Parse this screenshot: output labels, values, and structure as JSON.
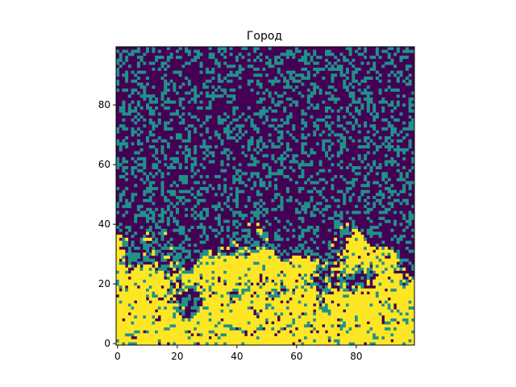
{
  "chart_data": {
    "type": "heatmap",
    "title": "Город",
    "xlabel": "",
    "ylabel": "",
    "grid_size": [
      100,
      100
    ],
    "origin": "lower",
    "xlim": [
      -0.5,
      99.5
    ],
    "ylim": [
      -0.5,
      99.5
    ],
    "x_ticks": [
      0,
      20,
      40,
      60,
      80
    ],
    "y_ticks": [
      0,
      20,
      40,
      60,
      80
    ],
    "x_tick_labels": [
      "0",
      "20",
      "40",
      "60",
      "80"
    ],
    "y_tick_labels": [
      "0",
      "20",
      "40",
      "60",
      "80"
    ],
    "grid": false,
    "legend": "none",
    "colormap": "viridis",
    "cell_values": {
      "empty": 0,
      "sparse": 1,
      "dense": 2
    },
    "colors": {
      "empty": "#440154",
      "sparse": "#21918c",
      "dense": "#fde725"
    },
    "region_description": {
      "upper_rows_y_range": [
        41,
        99
      ],
      "upper_rows_dense_fraction": 0.0,
      "upper_rows_sparse_fraction": 0.3,
      "lower_rows_y_range": [
        0,
        40
      ]
    }
  }
}
